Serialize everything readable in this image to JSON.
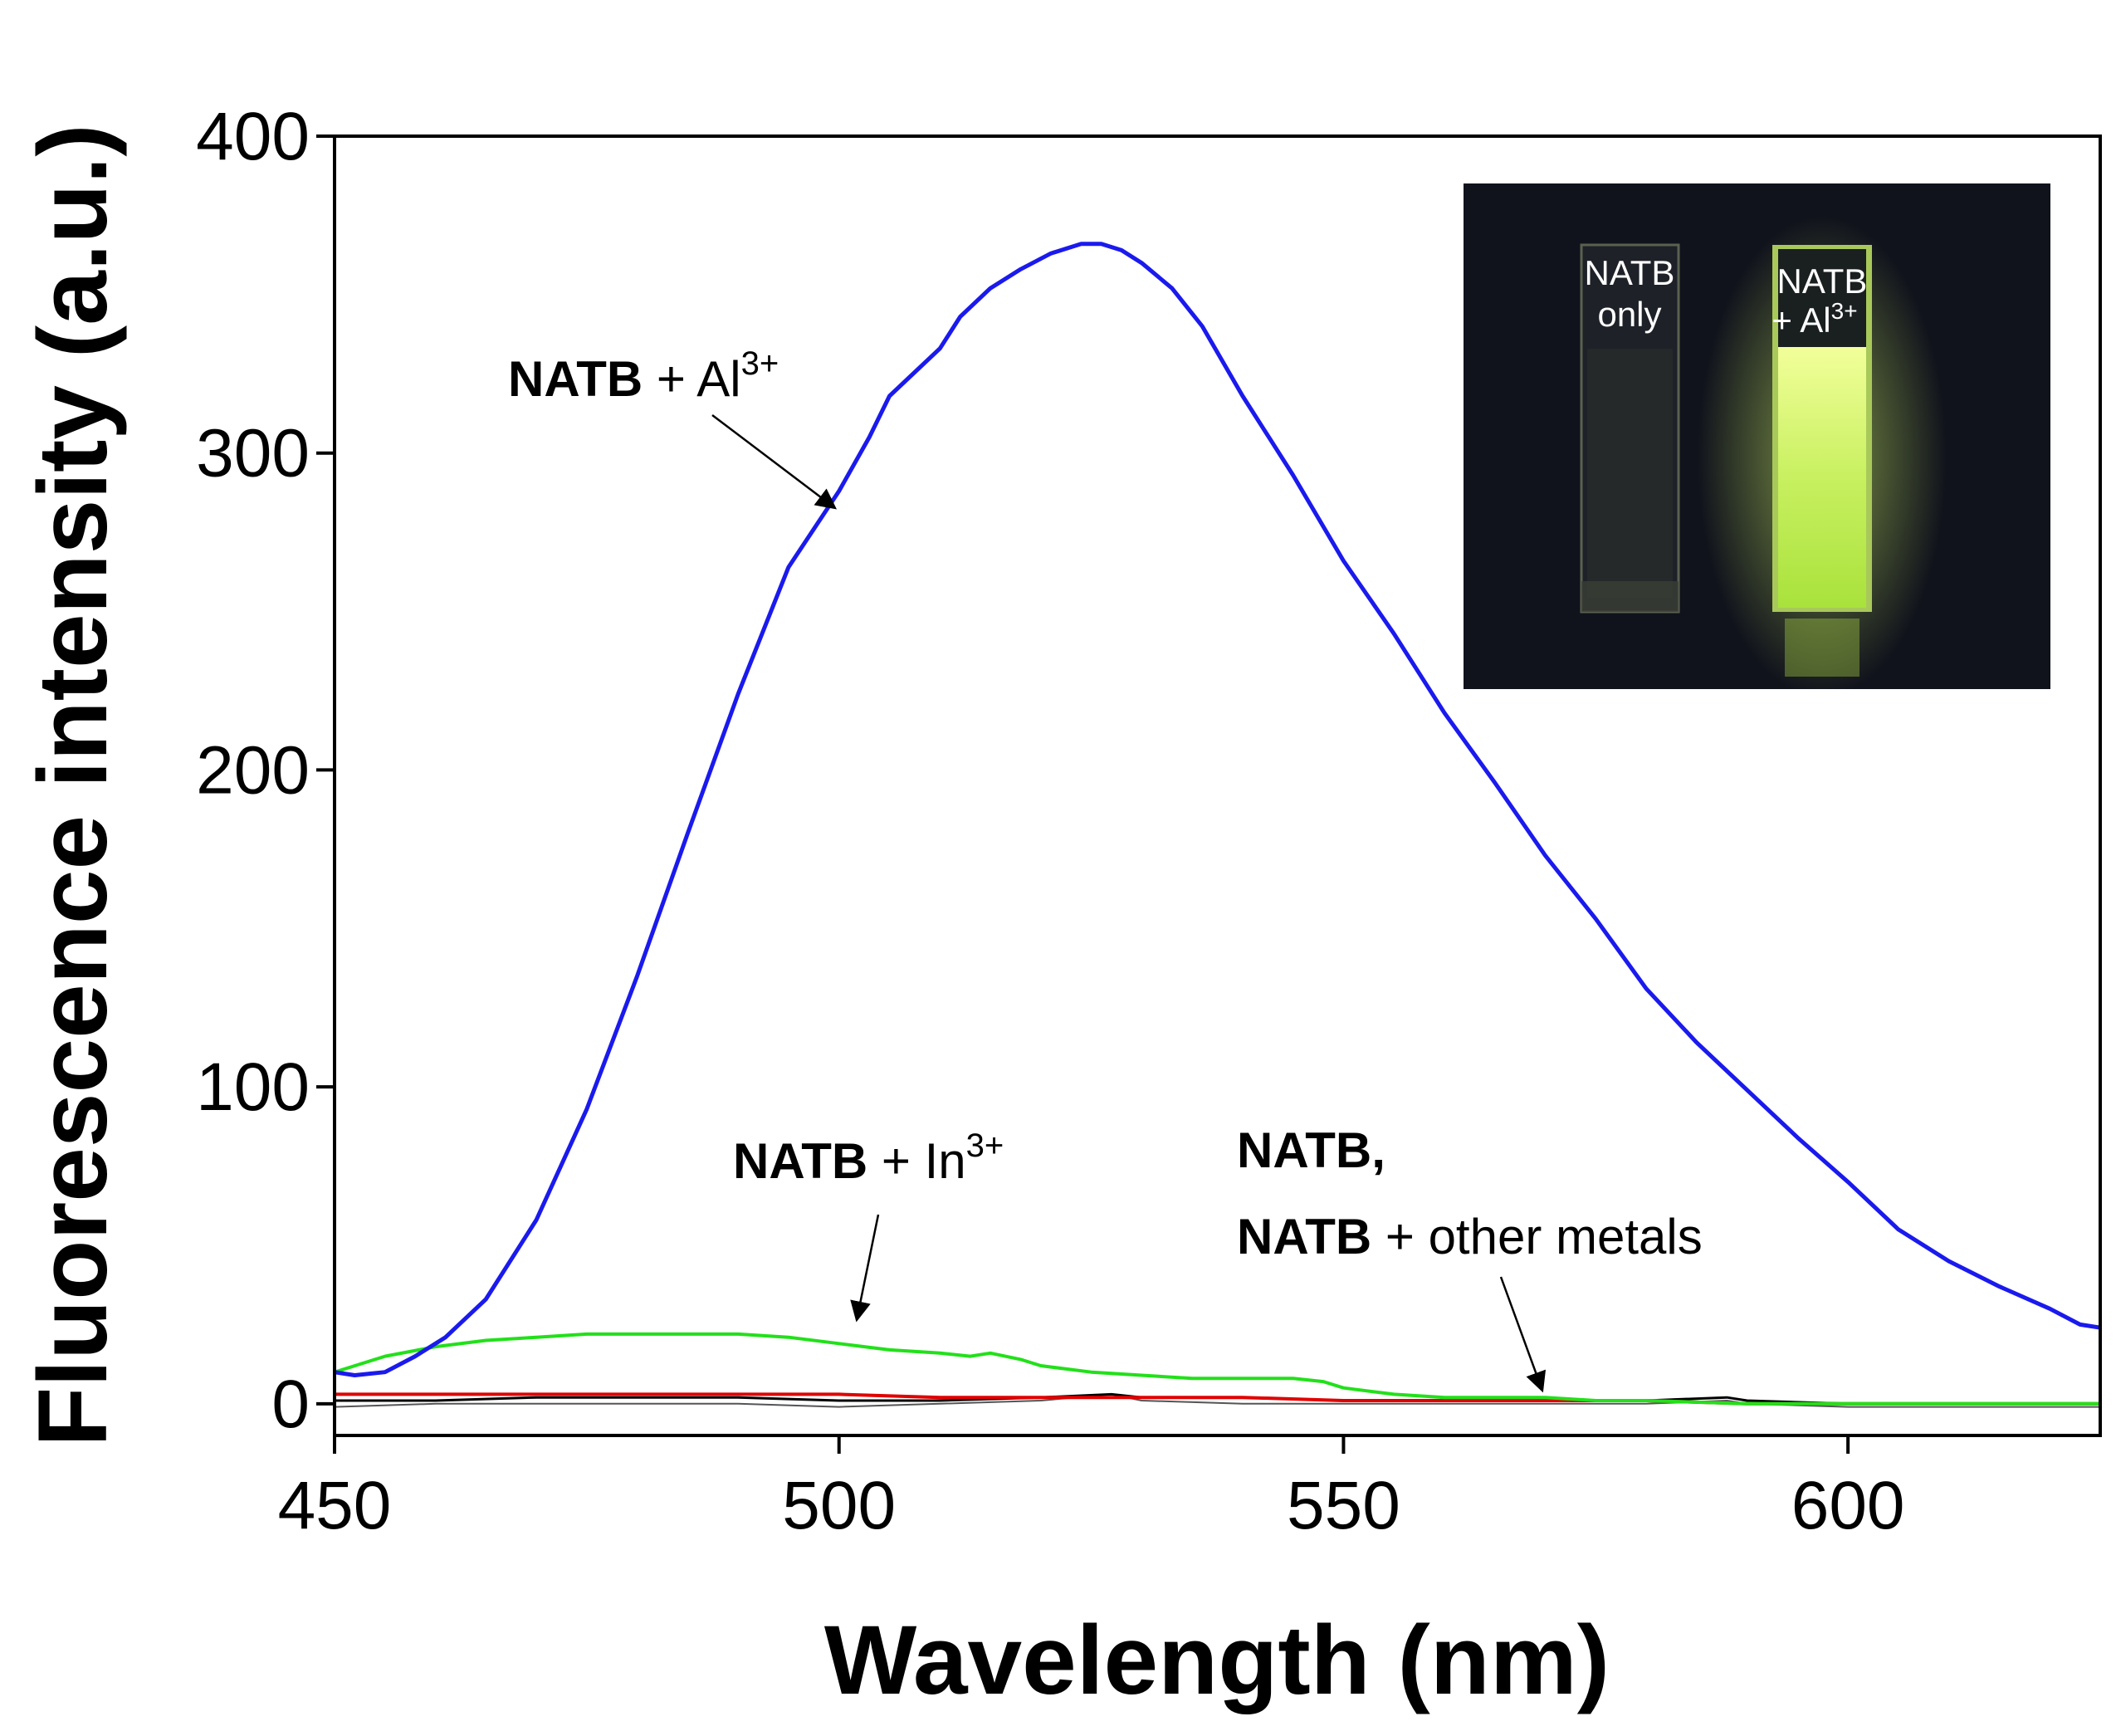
{
  "chart_data": {
    "type": "line",
    "xlabel": "Wavelength (nm)",
    "ylabel": "Fluorescence intensity (a.u.)",
    "xlim": [
      450,
      625
    ],
    "ylim": [
      -10,
      400
    ],
    "xticks": [
      450,
      500,
      550,
      600
    ],
    "yticks": [
      0,
      100,
      200,
      300,
      400
    ],
    "grid": false,
    "colors": {
      "al": "#1a1aee",
      "in": "#22e01a",
      "red": "#e00000",
      "black": "#000000",
      "gray": "#555555"
    },
    "series": [
      {
        "key": "al",
        "x": [
          450,
          452,
          455,
          458,
          461,
          465,
          470,
          475,
          480,
          485,
          490,
          495,
          500,
          503,
          505,
          510,
          512,
          515,
          518,
          521,
          524,
          526,
          528,
          530,
          533,
          536,
          540,
          545,
          550,
          555,
          560,
          565,
          570,
          575,
          580,
          585,
          590,
          595,
          600,
          605,
          610,
          615,
          620,
          623,
          625
        ],
        "y": [
          10,
          9,
          10,
          15,
          21,
          33,
          58,
          93,
          135,
          180,
          224,
          264,
          288,
          305,
          318,
          333,
          343,
          352,
          358,
          363,
          366,
          366,
          364,
          360,
          352,
          340,
          318,
          293,
          266,
          243,
          218,
          196,
          173,
          153,
          131,
          114,
          99,
          84,
          70,
          55,
          45,
          37,
          30,
          25,
          24
        ]
      },
      {
        "key": "in",
        "x": [
          450,
          455,
          460,
          465,
          470,
          475,
          480,
          485,
          490,
          495,
          500,
          505,
          510,
          513,
          515,
          518,
          520,
          525,
          530,
          535,
          540,
          545,
          548,
          550,
          555,
          560,
          565,
          570,
          575,
          580,
          590,
          600,
          610,
          625
        ],
        "y": [
          10,
          15,
          18,
          20,
          21,
          22,
          22,
          22,
          22,
          21,
          19,
          17,
          16,
          15,
          16,
          14,
          12,
          10,
          9,
          8,
          8,
          8,
          7,
          5,
          3,
          2,
          2,
          2,
          1,
          1,
          0,
          0,
          0,
          0
        ]
      },
      {
        "key": "red",
        "x": [
          450,
          460,
          470,
          480,
          490,
          500,
          510,
          520,
          530,
          540,
          550,
          560,
          570,
          580,
          590,
          600,
          610,
          625
        ],
        "y": [
          3,
          3,
          3,
          3,
          3,
          3,
          2,
          2,
          2,
          2,
          1,
          1,
          1,
          1,
          0,
          0,
          0,
          0
        ]
      },
      {
        "key": "black",
        "x": [
          450,
          460,
          470,
          480,
          490,
          500,
          510,
          520,
          527,
          530,
          540,
          550,
          560,
          570,
          580,
          588,
          590,
          600,
          610,
          625
        ],
        "y": [
          1,
          1,
          2,
          2,
          2,
          1,
          1,
          2,
          3,
          2,
          2,
          1,
          1,
          1,
          1,
          2,
          1,
          0,
          0,
          0
        ]
      },
      {
        "key": "gray",
        "x": [
          450,
          460,
          470,
          480,
          490,
          500,
          510,
          520,
          527,
          530,
          540,
          550,
          560,
          570,
          580,
          588,
          590,
          600,
          610,
          625
        ],
        "y": [
          -1,
          0,
          0,
          0,
          0,
          -1,
          0,
          1,
          3,
          1,
          0,
          0,
          0,
          0,
          0,
          1,
          0,
          -1,
          -1,
          -1
        ]
      }
    ],
    "annotations": {
      "al": {
        "bold": "NATB",
        "text": " + Al",
        "sup": "3+"
      },
      "in": {
        "bold": "NATB",
        "text": " + In",
        "sup": "3+"
      },
      "others_line1": {
        "bold": "NATB,"
      },
      "others_line2": {
        "bold": "NATB",
        "text": " + other metals"
      }
    },
    "inset": {
      "left_label_line1": "NATB",
      "left_label_line2": "only",
      "right_label_line1": "NATB",
      "right_label_line2": "+ Al",
      "right_label_sup": "3+"
    }
  }
}
